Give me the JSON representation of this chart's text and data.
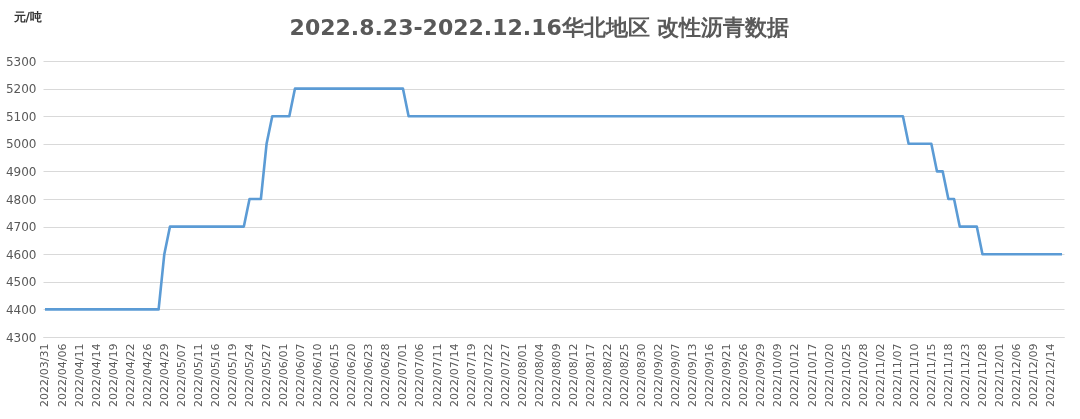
{
  "chart_data": {
    "type": "line",
    "title": "2022.8.23-2022.12.16华北地区  改性沥青数据",
    "ylabel": "元/吨",
    "categories": [
      "2022/03/31",
      null,
      null,
      "2022/04/06",
      null,
      null,
      "2022/04/11",
      null,
      null,
      "2022/04/14",
      null,
      null,
      "2022/04/19",
      null,
      null,
      "2022/04/22",
      null,
      null,
      "2022/04/26",
      null,
      null,
      "2022/04/29",
      null,
      null,
      "2022/05/07",
      null,
      null,
      "2022/05/11",
      null,
      null,
      "2022/05/16",
      null,
      null,
      "2022/05/19",
      null,
      null,
      "2022/05/24",
      null,
      null,
      "2022/05/27",
      null,
      null,
      "2022/06/01",
      null,
      null,
      "2022/06/07",
      null,
      null,
      "2022/06/10",
      null,
      null,
      "2022/06/15",
      null,
      null,
      "2022/06/20",
      null,
      null,
      "2022/06/23",
      null,
      null,
      "2022/06/28",
      null,
      null,
      "2022/07/01",
      null,
      null,
      "2022/07/06",
      null,
      null,
      "2022/07/11",
      null,
      null,
      "2022/07/14",
      null,
      null,
      "2022/07/19",
      null,
      null,
      "2022/07/22",
      null,
      null,
      "2022/07/27",
      null,
      null,
      "2022/08/01",
      null,
      null,
      "2022/08/04",
      null,
      null,
      "2022/08/09",
      null,
      null,
      "2022/08/12",
      null,
      null,
      "2022/08/17",
      null,
      null,
      "2022/08/22",
      null,
      null,
      "2022/08/25",
      null,
      null,
      "2022/08/30",
      null,
      null,
      "2022/09/02",
      null,
      null,
      "2022/09/07",
      null,
      null,
      "2022/09/13",
      null,
      null,
      "2022/09/16",
      null,
      null,
      "2022/09/21",
      null,
      null,
      "2022/09/26",
      null,
      null,
      "2022/09/29",
      null,
      null,
      "2022/10/09",
      null,
      null,
      "2022/10/12",
      null,
      null,
      "2022/10/17",
      null,
      null,
      "2022/10/20",
      null,
      null,
      "2022/10/25",
      null,
      null,
      "2022/10/28",
      null,
      null,
      "2022/11/02",
      null,
      null,
      "2022/11/07",
      null,
      null,
      "2022/11/10",
      null,
      null,
      "2022/11/15",
      null,
      null,
      "2022/11/18",
      null,
      null,
      "2022/11/23",
      null,
      null,
      "2022/11/28",
      null,
      null,
      "2022/12/01",
      null,
      null,
      "2022/12/06",
      null,
      null,
      "2022/12/09",
      null,
      null,
      "2022/12/14",
      null,
      null
    ],
    "series": [
      {
        "color": "#5b9bd5",
        "values": [
          4400,
          4400,
          4400,
          4400,
          4400,
          4400,
          4400,
          4400,
          4400,
          4400,
          4400,
          4400,
          4400,
          4400,
          4400,
          4400,
          4400,
          4400,
          4400,
          4400,
          4400,
          4600,
          4700,
          4700,
          4700,
          4700,
          4700,
          4700,
          4700,
          4700,
          4700,
          4700,
          4700,
          4700,
          4700,
          4700,
          4800,
          4800,
          4800,
          5000,
          5100,
          5100,
          5100,
          5100,
          5200,
          5200,
          5200,
          5200,
          5200,
          5200,
          5200,
          5200,
          5200,
          5200,
          5200,
          5200,
          5200,
          5200,
          5200,
          5200,
          5200,
          5200,
          5200,
          5200,
          5100,
          5100,
          5100,
          5100,
          5100,
          5100,
          5100,
          5100,
          5100,
          5100,
          5100,
          5100,
          5100,
          5100,
          5100,
          5100,
          5100,
          5100,
          5100,
          5100,
          5100,
          5100,
          5100,
          5100,
          5100,
          5100,
          5100,
          5100,
          5100,
          5100,
          5100,
          5100,
          5100,
          5100,
          5100,
          5100,
          5100,
          5100,
          5100,
          5100,
          5100,
          5100,
          5100,
          5100,
          5100,
          5100,
          5100,
          5100,
          5100,
          5100,
          5100,
          5100,
          5100,
          5100,
          5100,
          5100,
          5100,
          5100,
          5100,
          5100,
          5100,
          5100,
          5100,
          5100,
          5100,
          5100,
          5100,
          5100,
          5100,
          5100,
          5100,
          5100,
          5100,
          5100,
          5100,
          5100,
          5100,
          5100,
          5100,
          5100,
          5100,
          5100,
          5100,
          5100,
          5100,
          5100,
          5100,
          5100,
          5000,
          5000,
          5000,
          5000,
          5000,
          4900,
          4900,
          4800,
          4800,
          4700,
          4700,
          4700,
          4700,
          4600,
          4600,
          4600,
          4600,
          4600,
          4600,
          4600,
          4600,
          4600,
          4600,
          4600,
          4600,
          4600,
          4600,
          4600
        ]
      }
    ],
    "ylim": [
      4300,
      5300
    ],
    "yticks": [
      4300,
      4400,
      4500,
      4600,
      4700,
      4800,
      4900,
      5000,
      5100,
      5200,
      5300
    ],
    "grid": "y"
  }
}
